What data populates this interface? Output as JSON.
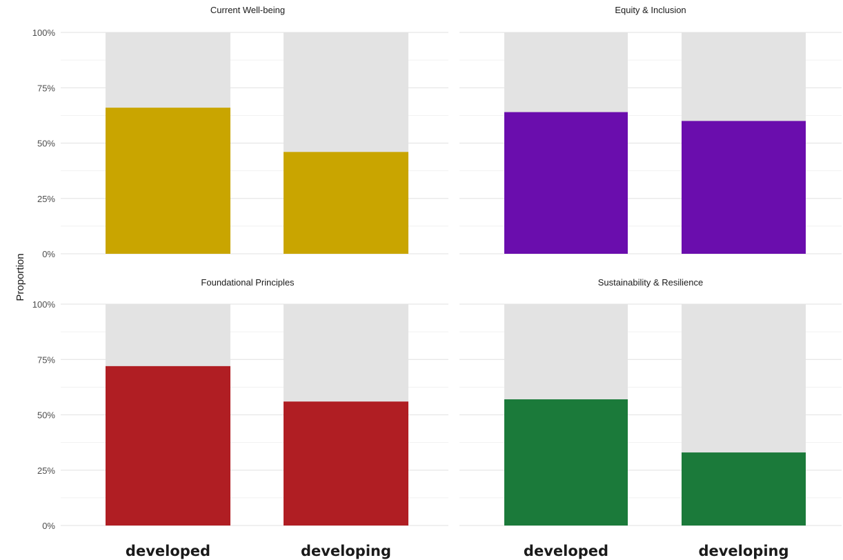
{
  "chart_data": {
    "type": "bar",
    "layout": "facet-grid",
    "stacked_to": 1.0,
    "ylabel": "Proportion",
    "xlabel": "",
    "ylim": [
      0,
      1
    ],
    "y_ticks": [
      "0%",
      "25%",
      "50%",
      "75%",
      "100%"
    ],
    "categories": [
      "developed",
      "developing"
    ],
    "background_color": "#e3e3e3",
    "grid": true,
    "panels": [
      {
        "title": "Current Well-being",
        "color": "#c9a500",
        "values": [
          0.66,
          0.46
        ]
      },
      {
        "title": "Equity & Inclusion",
        "color": "#6a0dad",
        "values": [
          0.64,
          0.6
        ]
      },
      {
        "title": "Foundational Principles",
        "color": "#b01e23",
        "values": [
          0.72,
          0.56
        ]
      },
      {
        "title": "Sustainability & Resilience",
        "color": "#1b7a3a",
        "values": [
          0.57,
          0.33
        ]
      }
    ]
  }
}
